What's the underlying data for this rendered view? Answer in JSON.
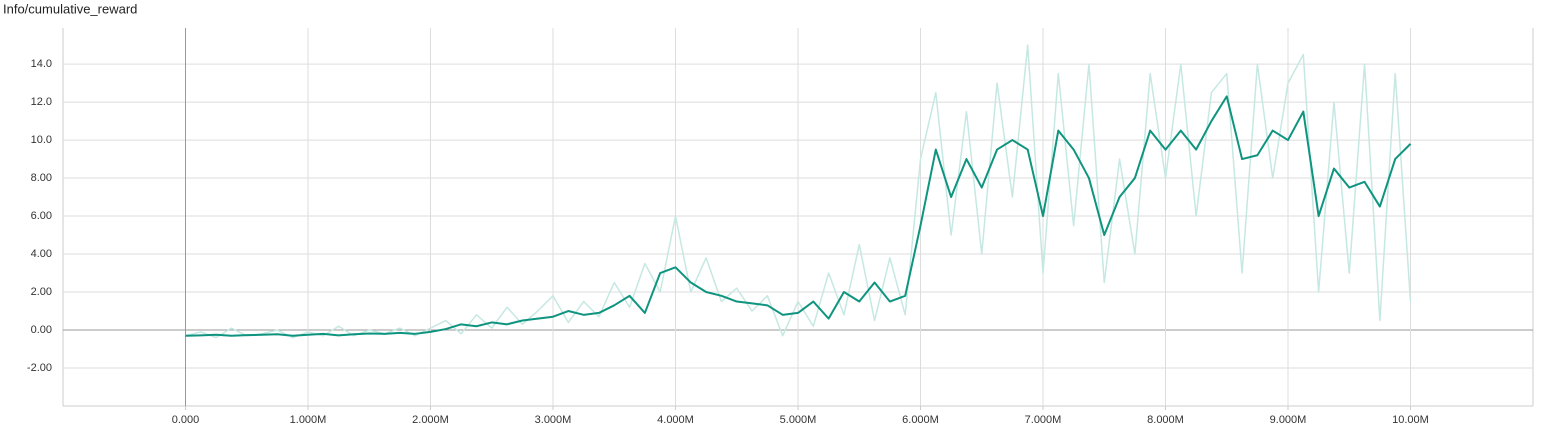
{
  "chart_data": {
    "type": "line",
    "title": "Info/cumulative_reward",
    "x": [
      0,
      125000,
      250000,
      375000,
      500000,
      625000,
      750000,
      875000,
      1000000,
      1125000,
      1250000,
      1375000,
      1500000,
      1625000,
      1750000,
      1875000,
      2000000,
      2125000,
      2250000,
      2375000,
      2500000,
      2625000,
      2750000,
      2875000,
      3000000,
      3125000,
      3250000,
      3375000,
      3500000,
      3625000,
      3750000,
      3875000,
      4000000,
      4125000,
      4250000,
      4375000,
      4500000,
      4625000,
      4750000,
      4875000,
      5000000,
      5125000,
      5250000,
      5375000,
      5500000,
      5625000,
      5750000,
      5875000,
      6000000,
      6125000,
      6250000,
      6375000,
      6500000,
      6625000,
      6750000,
      6875000,
      7000000,
      7125000,
      7250000,
      7375000,
      7500000,
      7625000,
      7750000,
      7875000,
      8000000,
      8125000,
      8250000,
      8375000,
      8500000,
      8625000,
      8750000,
      8875000,
      9000000,
      9125000,
      9250000,
      9375000,
      9500000,
      9625000,
      9750000,
      9875000,
      10000000
    ],
    "series": [
      {
        "color": "#c6e8e2",
        "values": [
          -0.3,
          -0.1,
          -0.4,
          0.1,
          -0.3,
          -0.2,
          0.0,
          -0.4,
          -0.1,
          -0.3,
          0.2,
          -0.3,
          0.0,
          -0.2,
          0.1,
          -0.3,
          0.1,
          0.5,
          -0.2,
          0.8,
          0.1,
          1.2,
          0.3,
          1.0,
          1.8,
          0.4,
          1.5,
          0.7,
          2.5,
          1.2,
          3.5,
          2.0,
          6.0,
          2.0,
          3.8,
          1.5,
          2.2,
          1.0,
          1.8,
          -0.3,
          1.5,
          0.2,
          3.0,
          0.8,
          4.5,
          0.5,
          3.8,
          0.8,
          9.0,
          12.5,
          5.0,
          11.5,
          4.0,
          13.0,
          7.0,
          15.0,
          3.0,
          13.5,
          5.5,
          14.0,
          2.5,
          9.0,
          4.0,
          13.5,
          8.0,
          14.0,
          6.0,
          12.5,
          13.5,
          3.0,
          14.0,
          8.0,
          13.0,
          14.5,
          2.0,
          12.0,
          3.0,
          14.0,
          0.5,
          13.5,
          1.5
        ]
      },
      {
        "color": "#0f9480",
        "values": [
          -0.3,
          -0.28,
          -0.25,
          -0.3,
          -0.27,
          -0.25,
          -0.22,
          -0.3,
          -0.25,
          -0.2,
          -0.28,
          -0.22,
          -0.18,
          -0.2,
          -0.15,
          -0.2,
          -0.1,
          0.05,
          0.3,
          0.2,
          0.4,
          0.3,
          0.5,
          0.6,
          0.7,
          1.0,
          0.8,
          0.9,
          1.3,
          1.8,
          0.9,
          3.0,
          3.3,
          2.5,
          2.0,
          1.8,
          1.5,
          1.4,
          1.3,
          0.8,
          0.9,
          1.5,
          0.6,
          2.0,
          1.5,
          2.5,
          1.5,
          1.8,
          5.5,
          9.5,
          7.0,
          9.0,
          7.5,
          9.5,
          10.0,
          9.5,
          6.0,
          10.5,
          9.5,
          8.0,
          5.0,
          7.0,
          8.0,
          10.5,
          9.5,
          10.5,
          9.5,
          11.0,
          12.3,
          9.0,
          9.2,
          10.5,
          10.0,
          11.5,
          6.0,
          8.5,
          7.5,
          7.8,
          6.5,
          9.0,
          9.8
        ]
      }
    ],
    "xlim": [
      -1000000,
      11000000
    ],
    "xticks": [
      {
        "value": 0,
        "label": "0.000"
      },
      {
        "value": 1000000,
        "label": "1.000M"
      },
      {
        "value": 2000000,
        "label": "2.000M"
      },
      {
        "value": 3000000,
        "label": "3.000M"
      },
      {
        "value": 4000000,
        "label": "4.000M"
      },
      {
        "value": 5000000,
        "label": "5.000M"
      },
      {
        "value": 6000000,
        "label": "6.000M"
      },
      {
        "value": 7000000,
        "label": "7.000M"
      },
      {
        "value": 8000000,
        "label": "8.000M"
      },
      {
        "value": 9000000,
        "label": "9.000M"
      },
      {
        "value": 10000000,
        "label": "10.00M"
      }
    ],
    "ylim": [
      -4,
      15.9
    ],
    "yticks": [
      {
        "value": -2,
        "label": "-2.00"
      },
      {
        "value": 0,
        "label": "0.00"
      },
      {
        "value": 2,
        "label": "2.00"
      },
      {
        "value": 4,
        "label": "4.00"
      },
      {
        "value": 6,
        "label": "6.00"
      },
      {
        "value": 8,
        "label": "8.00"
      },
      {
        "value": 10,
        "label": "10.0"
      },
      {
        "value": 12,
        "label": "12.0"
      },
      {
        "value": 14,
        "label": "14.0"
      }
    ],
    "grid": true
  }
}
